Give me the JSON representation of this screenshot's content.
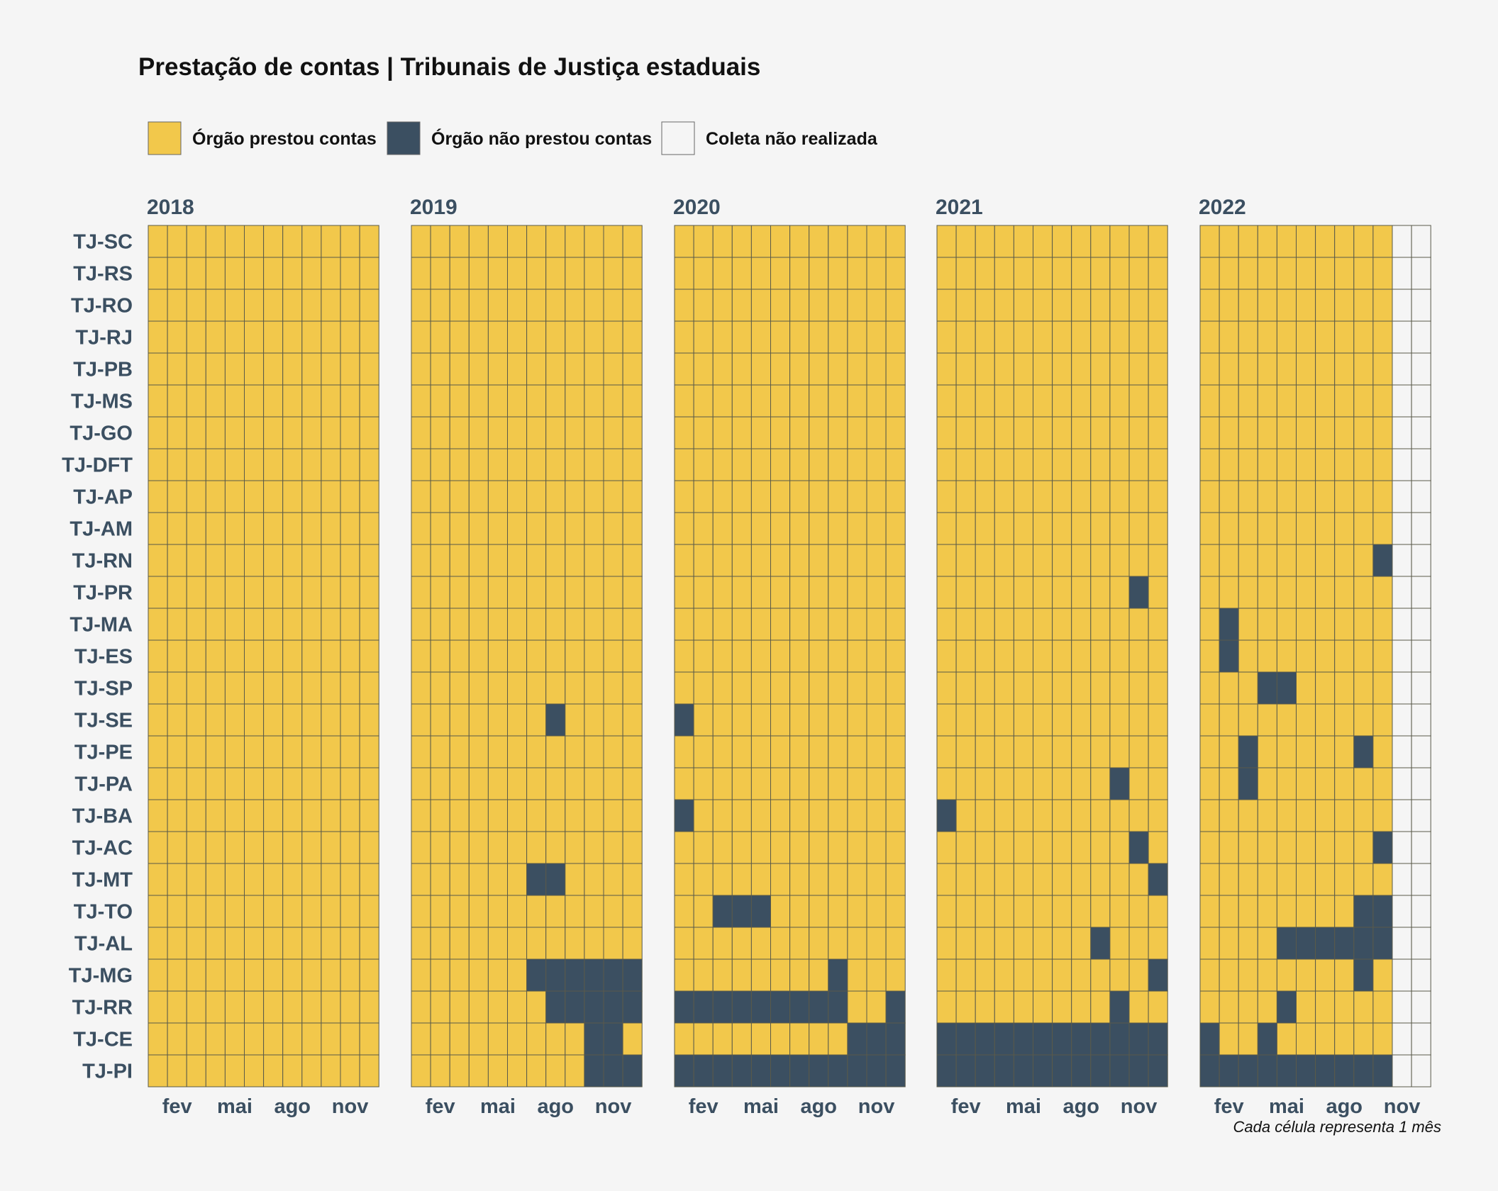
{
  "title": "Prestação de contas | Tribunais de Justiça estaduais",
  "caption": "Cada célula representa 1 mês",
  "colors": {
    "prestou": "#f2c84b",
    "nao_prestou": "#3b4f61",
    "nao_realizada": "#f5f5f5",
    "cell_border": "#5a5a4a",
    "background": "#f5f5f5"
  },
  "legend": [
    {
      "key": "1",
      "label": "Órgão prestou contas"
    },
    {
      "key": "0",
      "label": "Órgão não prestou contas"
    },
    {
      "key": "n",
      "label": "Coleta não realizada"
    }
  ],
  "chart_data": {
    "type": "heatmap",
    "years": [
      "2018",
      "2019",
      "2020",
      "2021",
      "2022"
    ],
    "month_ticks": [
      {
        "month": 2,
        "label": "fev"
      },
      {
        "month": 5,
        "label": "mai"
      },
      {
        "month": 8,
        "label": "ago"
      },
      {
        "month": 11,
        "label": "nov"
      }
    ],
    "rows": [
      "TJ-SC",
      "TJ-RS",
      "TJ-RO",
      "TJ-RJ",
      "TJ-PB",
      "TJ-MS",
      "TJ-GO",
      "TJ-DFT",
      "TJ-AP",
      "TJ-AM",
      "TJ-RN",
      "TJ-PR",
      "TJ-MA",
      "TJ-ES",
      "TJ-SP",
      "TJ-SE",
      "TJ-PE",
      "TJ-PA",
      "TJ-BA",
      "TJ-AC",
      "TJ-MT",
      "TJ-TO",
      "TJ-AL",
      "TJ-MG",
      "TJ-RR",
      "TJ-CE",
      "TJ-PI"
    ],
    "values": {
      "TJ-SC": [
        "111111111111",
        "111111111111",
        "111111111111",
        "111111111111",
        "1111111111nn"
      ],
      "TJ-RS": [
        "111111111111",
        "111111111111",
        "111111111111",
        "111111111111",
        "1111111111nn"
      ],
      "TJ-RO": [
        "111111111111",
        "111111111111",
        "111111111111",
        "111111111111",
        "1111111111nn"
      ],
      "TJ-RJ": [
        "111111111111",
        "111111111111",
        "111111111111",
        "111111111111",
        "1111111111nn"
      ],
      "TJ-PB": [
        "111111111111",
        "111111111111",
        "111111111111",
        "111111111111",
        "1111111111nn"
      ],
      "TJ-MS": [
        "111111111111",
        "111111111111",
        "111111111111",
        "111111111111",
        "1111111111nn"
      ],
      "TJ-GO": [
        "111111111111",
        "111111111111",
        "111111111111",
        "111111111111",
        "1111111111nn"
      ],
      "TJ-DFT": [
        "111111111111",
        "111111111111",
        "111111111111",
        "111111111111",
        "1111111111nn"
      ],
      "TJ-AP": [
        "111111111111",
        "111111111111",
        "111111111111",
        "111111111111",
        "1111111111nn"
      ],
      "TJ-AM": [
        "111111111111",
        "111111111111",
        "111111111111",
        "111111111111",
        "1111111111nn"
      ],
      "TJ-RN": [
        "111111111111",
        "111111111111",
        "111111111111",
        "111111111111",
        "1111111110nn"
      ],
      "TJ-PR": [
        "111111111111",
        "111111111111",
        "111111111111",
        "111111111101",
        "1111111111nn"
      ],
      "TJ-MA": [
        "111111111111",
        "111111111111",
        "111111111111",
        "111111111111",
        "1011111111nn"
      ],
      "TJ-ES": [
        "111111111111",
        "111111111111",
        "111111111111",
        "111111111111",
        "1011111111nn"
      ],
      "TJ-SP": [
        "111111111111",
        "111111111111",
        "111111111111",
        "111111111111",
        "1110011111nn"
      ],
      "TJ-SE": [
        "111111111111",
        "111111101111",
        "011111111111",
        "111111111111",
        "1111111111nn"
      ],
      "TJ-PE": [
        "111111111111",
        "111111111111",
        "111111111111",
        "111111111111",
        "1101111101nn"
      ],
      "TJ-PA": [
        "111111111111",
        "111111111111",
        "111111111111",
        "111111111011",
        "1101111111nn"
      ],
      "TJ-BA": [
        "111111111111",
        "111111111111",
        "011111111111",
        "011111111111",
        "1111111111nn"
      ],
      "TJ-AC": [
        "111111111111",
        "111111111111",
        "111111111111",
        "111111111101",
        "1111111110nn"
      ],
      "TJ-MT": [
        "111111111111",
        "111111001111",
        "111111111111",
        "111111111110",
        "1111111111nn"
      ],
      "TJ-TO": [
        "111111111111",
        "111111111111",
        "110001111111",
        "111111111111",
        "1111111100nn"
      ],
      "TJ-AL": [
        "111111111111",
        "111111111111",
        "111111111111",
        "111111110111",
        "1111000000nn"
      ],
      "TJ-MG": [
        "111111111111",
        "111111000000",
        "111111110111",
        "111111111110",
        "1111111101nn"
      ],
      "TJ-RR": [
        "111111111111",
        "111111100000",
        "000000000110",
        "111111111011",
        "1111011111nn"
      ],
      "TJ-CE": [
        "111111111111",
        "111111111001",
        "111111111000",
        "000000000000",
        "0110111111nn"
      ],
      "TJ-PI": [
        "111111111111",
        "111111111000",
        "000000000000",
        "000000000000",
        "0000000000nn"
      ]
    }
  }
}
